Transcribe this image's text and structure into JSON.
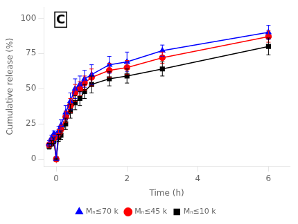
{
  "chart_data": {
    "type": "line",
    "x": [
      -0.2,
      -0.133,
      -0.067,
      0.0,
      0.067,
      0.133,
      0.267,
      0.4,
      0.533,
      0.667,
      0.8,
      1.0,
      1.5,
      2.0,
      3.0,
      6.0
    ],
    "series": [
      {
        "name": "Mₙ≤70 k",
        "color": "#0000ff",
        "marker": "triangle",
        "values": [
          11,
          15,
          18,
          0,
          20,
          24,
          33,
          41,
          50,
          53,
          57,
          60,
          67,
          69,
          77,
          90
        ],
        "yerr": [
          2,
          2,
          2,
          0.5,
          3,
          4,
          5,
          6,
          7,
          6,
          6,
          7,
          6,
          7,
          4,
          5
        ]
      },
      {
        "name": "Mₙ≤45 k",
        "color": "#ff0000",
        "marker": "circle",
        "values": [
          10,
          13,
          15,
          0,
          18,
          21,
          30,
          38,
          47,
          50,
          54,
          58,
          63,
          65,
          72,
          87
        ],
        "yerr": [
          2,
          2,
          2,
          0.5,
          3,
          3,
          4,
          5,
          6,
          5,
          5,
          6,
          5,
          5,
          4,
          4
        ]
      },
      {
        "name": "Mₙ≤10 k",
        "color": "#000000",
        "marker": "square",
        "values": [
          9,
          11,
          13,
          0,
          15,
          17,
          25,
          34,
          40,
          43,
          48,
          53,
          57,
          59,
          64,
          80
        ],
        "yerr": [
          2,
          2,
          2,
          0.5,
          2.5,
          3,
          4,
          5,
          5,
          5,
          5,
          6,
          5,
          5,
          5,
          6
        ]
      }
    ],
    "x_label": "Time (h)",
    "y_label": "Cumulative release (%)",
    "xlim": [
      -0.35,
      6.6
    ],
    "ylim": [
      -5,
      108
    ],
    "xticks": [
      0,
      2,
      4,
      6
    ],
    "yticks": [
      0,
      25,
      50,
      75,
      100
    ],
    "annotations": [
      "C"
    ],
    "grid": false,
    "legend": "bottom"
  }
}
